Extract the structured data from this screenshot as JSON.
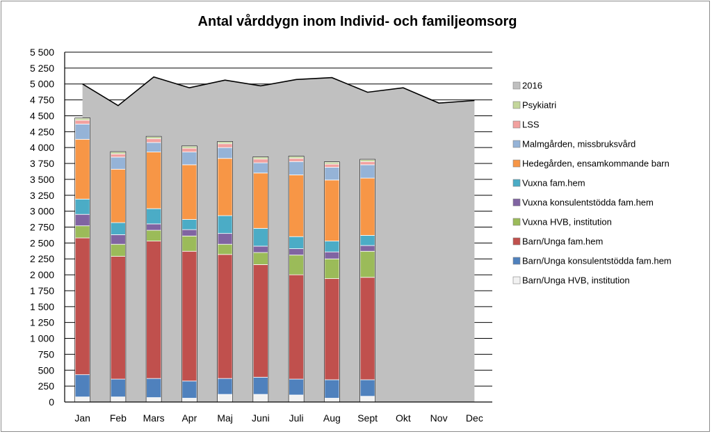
{
  "chart_data": {
    "type": "bar",
    "title": "Antal vårddygn inom Individ- och familjeomsorg",
    "xlabel": "",
    "ylabel": "",
    "ylim": [
      0,
      5500
    ],
    "yticks": [
      "0",
      "250",
      "500",
      "750",
      "1 000",
      "1 250",
      "1 500",
      "1 750",
      "2 000",
      "2 250",
      "2 500",
      "2 750",
      "3 000",
      "3 250",
      "3 500",
      "3 750",
      "4 000",
      "4 250",
      "4 500",
      "4 750",
      "5 000",
      "5 250",
      "5 500"
    ],
    "categories": [
      "Jan",
      "Feb",
      "Mars",
      "Apr",
      "Maj",
      "Juni",
      "Juli",
      "Aug",
      "Sept",
      "Okt",
      "Nov",
      "Dec"
    ],
    "grid": true,
    "legend_position": "right",
    "area_series": {
      "name": "2016",
      "color": "#c0c0c0",
      "values": [
        5000,
        4660,
        5110,
        4940,
        5060,
        4970,
        5070,
        5100,
        4870,
        4940,
        4700,
        4740
      ]
    },
    "series": [
      {
        "name": "Barn/Unga HVB, institution",
        "color": "#f2f2f2",
        "values": [
          80,
          80,
          70,
          60,
          120,
          120,
          110,
          60,
          90,
          null,
          null,
          null
        ]
      },
      {
        "name": "Barn/Unga konsulentstödda fam.hem",
        "color": "#4f81bd",
        "values": [
          350,
          280,
          300,
          270,
          250,
          270,
          250,
          290,
          260,
          null,
          null,
          null
        ]
      },
      {
        "name": "Barn/Unga fam.hem",
        "color": "#c0504d",
        "values": [
          2150,
          1930,
          2160,
          2040,
          1950,
          1770,
          1640,
          1590,
          1610,
          null,
          null,
          null
        ]
      },
      {
        "name": "Vuxna HVB, institution",
        "color": "#9bbb59",
        "values": [
          190,
          190,
          170,
          240,
          160,
          190,
          310,
          310,
          410,
          null,
          null,
          null
        ]
      },
      {
        "name": "Vuxna konsulentstödda fam.hem",
        "color": "#8064a2",
        "values": [
          180,
          150,
          100,
          100,
          170,
          100,
          100,
          110,
          90,
          null,
          null,
          null
        ]
      },
      {
        "name": "Vuxna fam.hem",
        "color": "#4bacc6",
        "values": [
          240,
          190,
          240,
          160,
          280,
          280,
          190,
          170,
          160,
          null,
          null,
          null
        ]
      },
      {
        "name": "Hedegården, ensamkommande barn",
        "color": "#f79646",
        "values": [
          940,
          840,
          890,
          860,
          900,
          870,
          970,
          960,
          900,
          null,
          null,
          null
        ]
      },
      {
        "name": "Malmgården, missbruksvård",
        "color": "#95b3d7",
        "values": [
          240,
          190,
          150,
          200,
          170,
          160,
          210,
          200,
          210,
          null,
          null,
          null
        ]
      },
      {
        "name": "LSS",
        "color": "#f2a19f",
        "values": [
          60,
          50,
          60,
          60,
          60,
          60,
          50,
          50,
          50,
          null,
          null,
          null
        ]
      },
      {
        "name": "Psykiatri",
        "color": "#c3d69b",
        "values": [
          30,
          30,
          30,
          30,
          30,
          30,
          30,
          30,
          30,
          null,
          null,
          null
        ]
      }
    ]
  }
}
